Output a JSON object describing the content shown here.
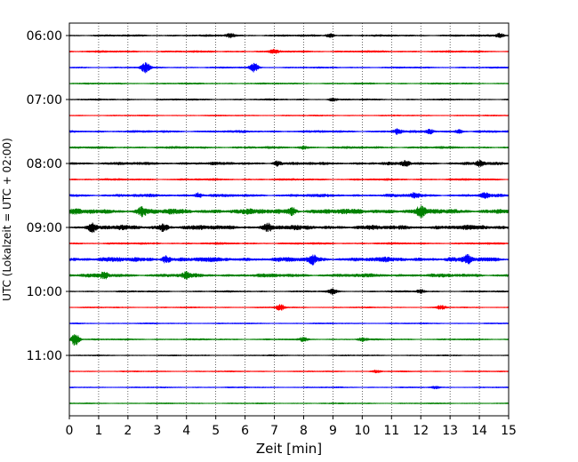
{
  "chart_data": {
    "type": "line",
    "title": "",
    "xlabel": "Zeit  [min]",
    "ylabel": "UTC (Lokalzeit = UTC + 02:00)",
    "xlim": [
      0,
      15
    ],
    "x_ticks": [
      "0",
      "1",
      "2",
      "3",
      "4",
      "5",
      "6",
      "7",
      "8",
      "9",
      "10",
      "11",
      "12",
      "13",
      "14",
      "15"
    ],
    "y_tick_labels": [
      "06:00",
      "07:00",
      "08:00",
      "09:00",
      "10:00",
      "11:00"
    ],
    "y_tick_rows": [
      0,
      4,
      8,
      12,
      16,
      20
    ],
    "grid_x": true,
    "trace_colors": [
      "#000000",
      "#ff0000",
      "#0000ff",
      "#008000"
    ],
    "rows": [
      {
        "start": "06:00",
        "color": "#000000",
        "amp": 1.0,
        "events": [
          {
            "t": 5.5,
            "a": 2.5
          },
          {
            "t": 8.9,
            "a": 2.2
          },
          {
            "t": 14.7,
            "a": 2.6
          }
        ]
      },
      {
        "start": "06:15",
        "color": "#ff0000",
        "amp": 1.0,
        "events": [
          {
            "t": 7.0,
            "a": 1.8
          }
        ]
      },
      {
        "start": "06:30",
        "color": "#0000ff",
        "amp": 0.8,
        "events": [
          {
            "t": 2.6,
            "a": 5.5
          },
          {
            "t": 6.3,
            "a": 5.0
          }
        ]
      },
      {
        "start": "06:45",
        "color": "#008000",
        "amp": 0.8,
        "events": []
      },
      {
        "start": "07:00",
        "color": "#000000",
        "amp": 0.8,
        "events": [
          {
            "t": 9.0,
            "a": 1.6
          }
        ]
      },
      {
        "start": "07:15",
        "color": "#ff0000",
        "amp": 0.6,
        "events": []
      },
      {
        "start": "07:30",
        "color": "#0000ff",
        "amp": 1.2,
        "events": [
          {
            "t": 11.2,
            "a": 2.6
          },
          {
            "t": 12.3,
            "a": 2.4
          },
          {
            "t": 13.3,
            "a": 2.2
          }
        ]
      },
      {
        "start": "07:45",
        "color": "#008000",
        "amp": 1.2,
        "events": [
          {
            "t": 8.0,
            "a": 1.8
          }
        ]
      },
      {
        "start": "08:00",
        "color": "#000000",
        "amp": 1.6,
        "events": [
          {
            "t": 7.1,
            "a": 2.3
          },
          {
            "t": 11.5,
            "a": 2.3
          },
          {
            "t": 14.0,
            "a": 2.6
          }
        ]
      },
      {
        "start": "08:15",
        "color": "#ff0000",
        "amp": 1.0,
        "events": []
      },
      {
        "start": "08:30",
        "color": "#0000ff",
        "amp": 1.6,
        "events": [
          {
            "t": 4.4,
            "a": 2.5
          },
          {
            "t": 11.8,
            "a": 2.8
          },
          {
            "t": 14.2,
            "a": 2.8
          }
        ]
      },
      {
        "start": "08:45",
        "color": "#008000",
        "amp": 3.0,
        "events": [
          {
            "t": 2.5,
            "a": 4.2
          },
          {
            "t": 7.6,
            "a": 4.0
          },
          {
            "t": 12.0,
            "a": 4.2
          }
        ]
      },
      {
        "start": "09:00",
        "color": "#000000",
        "amp": 2.6,
        "events": [
          {
            "t": 0.8,
            "a": 4.0
          },
          {
            "t": 3.2,
            "a": 3.8
          },
          {
            "t": 6.8,
            "a": 3.6
          }
        ]
      },
      {
        "start": "09:15",
        "color": "#ff0000",
        "amp": 1.0,
        "events": []
      },
      {
        "start": "09:30",
        "color": "#0000ff",
        "amp": 2.6,
        "events": [
          {
            "t": 3.3,
            "a": 4.0
          },
          {
            "t": 8.3,
            "a": 4.4
          },
          {
            "t": 13.6,
            "a": 3.8
          }
        ]
      },
      {
        "start": "09:45",
        "color": "#008000",
        "amp": 2.0,
        "events": [
          {
            "t": 1.2,
            "a": 3.4
          },
          {
            "t": 4.0,
            "a": 3.0
          }
        ]
      },
      {
        "start": "10:00",
        "color": "#000000",
        "amp": 0.8,
        "events": [
          {
            "t": 9.0,
            "a": 3.0
          },
          {
            "t": 12.0,
            "a": 2.0
          }
        ]
      },
      {
        "start": "10:15",
        "color": "#ff0000",
        "amp": 0.6,
        "events": [
          {
            "t": 7.2,
            "a": 3.5
          },
          {
            "t": 12.7,
            "a": 2.5
          }
        ]
      },
      {
        "start": "10:30",
        "color": "#0000ff",
        "amp": 0.6,
        "events": []
      },
      {
        "start": "10:45",
        "color": "#008000",
        "amp": 0.8,
        "events": [
          {
            "t": 0.2,
            "a": 7.5
          },
          {
            "t": 8.0,
            "a": 2.0
          },
          {
            "t": 10.0,
            "a": 1.8
          }
        ]
      },
      {
        "start": "11:00",
        "color": "#000000",
        "amp": 0.6,
        "events": []
      },
      {
        "start": "11:15",
        "color": "#ff0000",
        "amp": 0.6,
        "events": [
          {
            "t": 10.5,
            "a": 1.6
          }
        ]
      },
      {
        "start": "11:30",
        "color": "#0000ff",
        "amp": 0.6,
        "events": [
          {
            "t": 12.5,
            "a": 1.4
          }
        ]
      },
      {
        "start": "11:45",
        "color": "#008000",
        "amp": 0.6,
        "events": []
      }
    ]
  }
}
